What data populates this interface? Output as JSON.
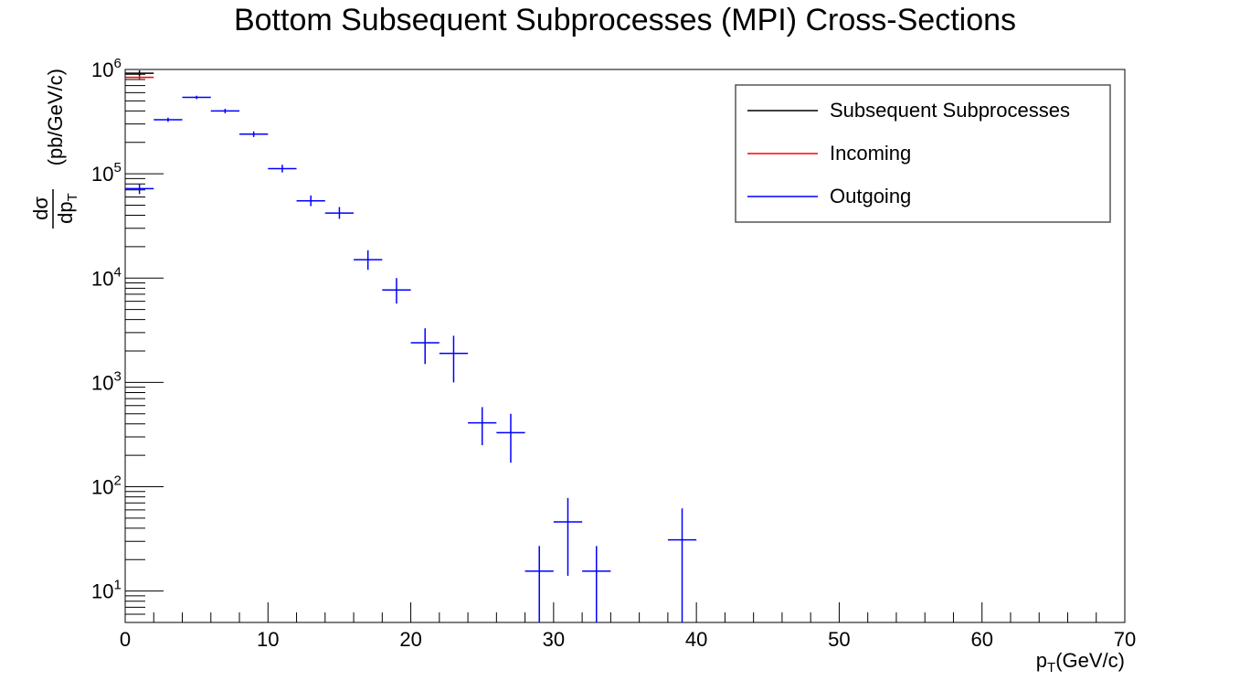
{
  "chart_data": {
    "type": "scatter",
    "title": "Bottom Subsequent Subprocesses (MPI) Cross-Sections",
    "xlabel_base": "p",
    "xlabel_sub": "T",
    "xlabel_rest": "(GeV/c)",
    "ylabel_num": "dσ",
    "ylabel_den_base": "dp",
    "ylabel_den_sub": "T",
    "ylabel_rest": "(pb/GeV/c)",
    "xlim": [
      0,
      70
    ],
    "ylim": [
      5,
      1000000
    ],
    "yscale": "log",
    "grid": false,
    "legend_position": "top-right",
    "x_ticks": [
      "0",
      "10",
      "20",
      "30",
      "40",
      "50",
      "60",
      "70"
    ],
    "y_ticks": [
      {
        "base": "10",
        "exp": "1"
      },
      {
        "base": "10",
        "exp": "2"
      },
      {
        "base": "10",
        "exp": "3"
      },
      {
        "base": "10",
        "exp": "4"
      },
      {
        "base": "10",
        "exp": "5"
      },
      {
        "base": "10",
        "exp": "6"
      }
    ],
    "series": [
      {
        "name": "Subsequent Subprocesses",
        "color": "#000000",
        "points": [
          {
            "x": 1,
            "xerr": 1,
            "y": 920000,
            "ylo": 860000,
            "yhi": 980000
          }
        ]
      },
      {
        "name": "Incoming",
        "color": "#ff0000",
        "points": [
          {
            "x": 1,
            "xerr": 1,
            "y": 840000,
            "ylo": 810000,
            "yhi": 870000
          }
        ]
      },
      {
        "name": "Outgoing",
        "color": "#0000ff",
        "points": [
          {
            "x": 1,
            "xerr": 1,
            "y": 72000,
            "ylo": 64000,
            "yhi": 80000
          },
          {
            "x": 3,
            "xerr": 1,
            "y": 330000,
            "ylo": 315000,
            "yhi": 345000
          },
          {
            "x": 5,
            "xerr": 1,
            "y": 540000,
            "ylo": 520000,
            "yhi": 560000
          },
          {
            "x": 7,
            "xerr": 1,
            "y": 400000,
            "ylo": 380000,
            "yhi": 420000
          },
          {
            "x": 9,
            "xerr": 1,
            "y": 240000,
            "ylo": 225000,
            "yhi": 255000
          },
          {
            "x": 11,
            "xerr": 1,
            "y": 112000,
            "ylo": 103000,
            "yhi": 122000
          },
          {
            "x": 13,
            "xerr": 1,
            "y": 55000,
            "ylo": 49000,
            "yhi": 62000
          },
          {
            "x": 15,
            "xerr": 1,
            "y": 42000,
            "ylo": 37000,
            "yhi": 48000
          },
          {
            "x": 17,
            "xerr": 1,
            "y": 15000,
            "ylo": 12000,
            "yhi": 18500
          },
          {
            "x": 19,
            "xerr": 1,
            "y": 7700,
            "ylo": 5700,
            "yhi": 10000
          },
          {
            "x": 21,
            "xerr": 1,
            "y": 2400,
            "ylo": 1500,
            "yhi": 3300
          },
          {
            "x": 23,
            "xerr": 1,
            "y": 1900,
            "ylo": 1000,
            "yhi": 2800
          },
          {
            "x": 25,
            "xerr": 1,
            "y": 410,
            "ylo": 250,
            "yhi": 580
          },
          {
            "x": 27,
            "xerr": 1,
            "y": 330,
            "ylo": 170,
            "yhi": 500
          },
          {
            "x": 29,
            "xerr": 1,
            "y": 15.5,
            "ylo": 5,
            "yhi": 27
          },
          {
            "x": 31,
            "xerr": 1,
            "y": 46,
            "ylo": 14,
            "yhi": 78
          },
          {
            "x": 33,
            "xerr": 1,
            "y": 15.5,
            "ylo": 5,
            "yhi": 27
          },
          {
            "x": 39,
            "xerr": 1,
            "y": 31,
            "ylo": 5,
            "yhi": 62
          }
        ]
      }
    ]
  }
}
